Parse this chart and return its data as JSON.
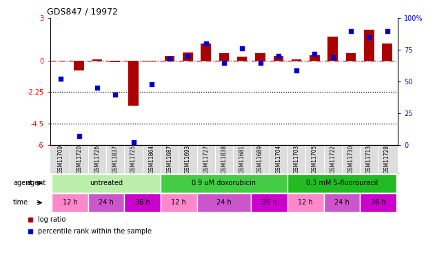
{
  "title": "GDS847 / 19972",
  "samples": [
    "GSM11709",
    "GSM11720",
    "GSM11726",
    "GSM11837",
    "GSM11725",
    "GSM11864",
    "GSM11687",
    "GSM11693",
    "GSM11727",
    "GSM11838",
    "GSM11681",
    "GSM11689",
    "GSM11704",
    "GSM11703",
    "GSM11705",
    "GSM11722",
    "GSM11730",
    "GSM11713",
    "GSM11728"
  ],
  "log_ratio": [
    0.0,
    -0.7,
    0.05,
    -0.1,
    -3.2,
    -0.05,
    0.3,
    0.55,
    1.2,
    0.5,
    0.25,
    0.5,
    0.3,
    0.05,
    0.35,
    1.7,
    0.5,
    2.2,
    1.2
  ],
  "percentile": [
    52,
    7,
    45,
    40,
    2,
    48,
    68,
    70,
    80,
    65,
    76,
    65,
    70,
    59,
    72,
    69,
    90,
    85,
    90
  ],
  "ylim_left": [
    -6,
    3
  ],
  "ylim_right": [
    0,
    100
  ],
  "yticks_left": [
    -6,
    -4.5,
    -2.25,
    0,
    3
  ],
  "yticks_right": [
    0,
    25,
    50,
    75,
    100
  ],
  "hlines": [
    -2.25,
    -4.5
  ],
  "bar_color": "#AA0000",
  "scatter_color": "#0000CC",
  "agent_groups": [
    {
      "label": "untreated",
      "start": 0,
      "end": 6,
      "color": "#BBEEAA"
    },
    {
      "label": "0.9 uM doxorubicin",
      "start": 6,
      "end": 13,
      "color": "#44CC44"
    },
    {
      "label": "0.3 mM 5-fluorouracil",
      "start": 13,
      "end": 19,
      "color": "#22BB22"
    }
  ],
  "time_groups": [
    {
      "label": "12 h",
      "start": 0,
      "end": 2,
      "color": "#FF88CC"
    },
    {
      "label": "24 h",
      "start": 2,
      "end": 4,
      "color": "#CC55CC"
    },
    {
      "label": "36 h",
      "start": 4,
      "end": 6,
      "color": "#CC00CC"
    },
    {
      "label": "12 h",
      "start": 6,
      "end": 8,
      "color": "#FF88CC"
    },
    {
      "label": "24 h",
      "start": 8,
      "end": 11,
      "color": "#CC55CC"
    },
    {
      "label": "36 h",
      "start": 11,
      "end": 13,
      "color": "#CC00CC"
    },
    {
      "label": "12 h",
      "start": 13,
      "end": 15,
      "color": "#FF88CC"
    },
    {
      "label": "24 h",
      "start": 15,
      "end": 17,
      "color": "#CC55CC"
    },
    {
      "label": "36 h",
      "start": 17,
      "end": 19,
      "color": "#CC00CC"
    }
  ]
}
